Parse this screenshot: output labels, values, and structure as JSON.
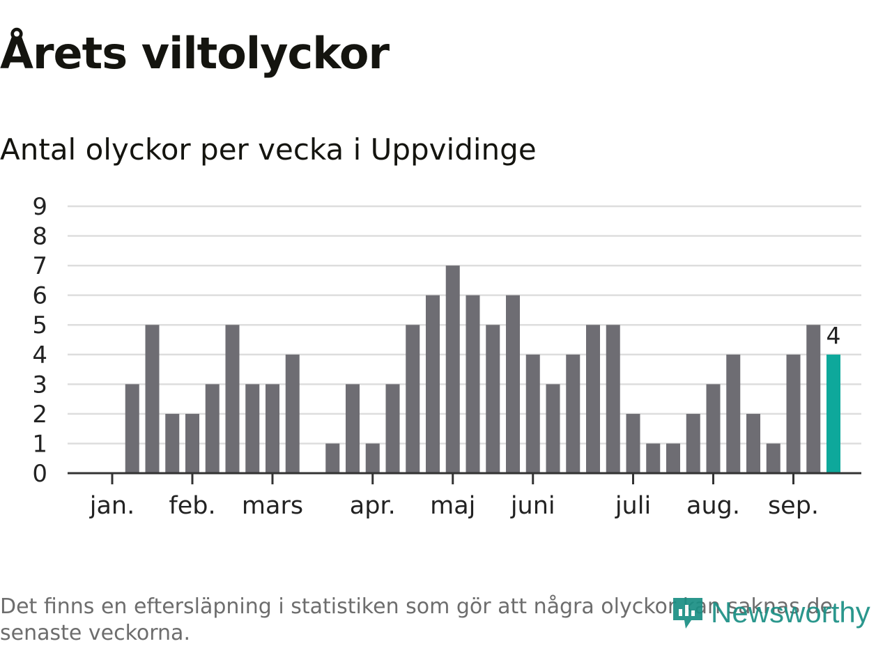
{
  "title": "Årets viltolyckor",
  "subtitle": "Antal olyckor per vecka i Uppvidinge",
  "footnote": "Det finns en eftersläpning i statistiken som gör att några olyckor kan saknas de senaste veckorna.",
  "brand": "Newsworthy",
  "colors": {
    "bar": "#6e6d73",
    "highlight": "#0ea89b",
    "grid": "#dddddd",
    "axis": "#333333",
    "brand": "#1a8f84"
  },
  "chart_data": {
    "type": "bar",
    "title": "Årets viltolyckor",
    "subtitle": "Antal olyckor per vecka i Uppvidinge",
    "xlabel": "",
    "ylabel": "",
    "ylim": [
      0,
      9
    ],
    "yticks": [
      "0",
      "1",
      "2",
      "3",
      "4",
      "5",
      "6",
      "7",
      "8",
      "9"
    ],
    "grid": true,
    "month_labels": [
      "jan.",
      "feb.",
      "mars",
      "apr.",
      "maj",
      "juni",
      "juli",
      "aug.",
      "sep."
    ],
    "month_label_week_index": [
      0,
      4,
      8,
      13,
      17,
      21,
      26,
      30,
      34
    ],
    "values": [
      0,
      3,
      5,
      2,
      2,
      3,
      5,
      3,
      3,
      4,
      0,
      1,
      3,
      1,
      3,
      5,
      6,
      7,
      6,
      5,
      6,
      4,
      3,
      4,
      5,
      5,
      2,
      1,
      1,
      2,
      3,
      4,
      2,
      1,
      4,
      5,
      4
    ],
    "highlight_index": 36,
    "highlight_label": "4"
  }
}
